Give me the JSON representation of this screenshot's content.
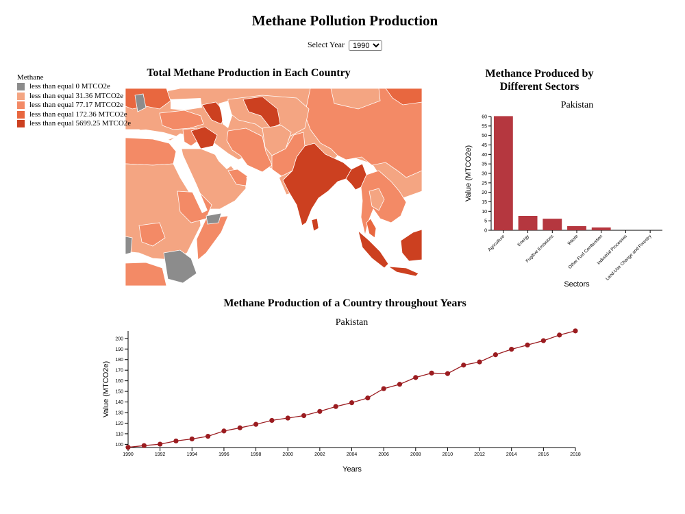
{
  "header": {
    "title": "Methane Pollution Production",
    "year_label": "Select Year",
    "year_selected": "1990",
    "year_options": [
      "1990"
    ]
  },
  "map": {
    "title": "Total Methane Production in Each Country",
    "legend_title": "Methane",
    "legend": [
      {
        "label": "less than equal 0 MTCO2e",
        "color": "#8c8c8c"
      },
      {
        "label": "less than equal 31.36 MTCO2e",
        "color": "#f4a582"
      },
      {
        "label": "less than equal 77.17 MTCO2e",
        "color": "#f38a66"
      },
      {
        "label": "less than equal 172.36 MTCO2e",
        "color": "#e8673f"
      },
      {
        "label": "less than equal 5699.25 MTCO2e",
        "color": "#cc4020"
      }
    ]
  },
  "chart_data": [
    {
      "type": "bar",
      "title": "Methance Produced by Different Sectors",
      "subtitle": "Pakistan",
      "xlabel": "Sectors",
      "ylabel": "Value (MTCO2e)",
      "ylim": [
        0,
        60
      ],
      "yticks": [
        0,
        5,
        10,
        15,
        20,
        25,
        30,
        35,
        40,
        45,
        50,
        55,
        60
      ],
      "color": "#b5373f",
      "categories": [
        "Agriculture",
        "Energy",
        "Fugitive Emissions",
        "Waste",
        "Other Fuel Combustion",
        "Industrial Processes",
        "Land-Use Change and Forestry"
      ],
      "values": [
        60.2,
        7.6,
        6.1,
        2.2,
        1.5,
        0,
        0
      ]
    },
    {
      "type": "line",
      "title": "Methane Production of a Country throughout Years",
      "subtitle": "Pakistan",
      "xlabel": "Years",
      "ylabel": "Value (MTCO2e)",
      "color": "#9b1c20",
      "xlim": [
        1990,
        2018
      ],
      "ylim": [
        97,
        207
      ],
      "xticks": [
        1990,
        1992,
        1994,
        1996,
        1998,
        2000,
        2002,
        2004,
        2006,
        2008,
        2010,
        2012,
        2014,
        2016,
        2018
      ],
      "yticks": [
        100,
        110,
        120,
        130,
        140,
        150,
        160,
        170,
        180,
        190,
        200
      ],
      "x": [
        1990,
        1991,
        1992,
        1993,
        1994,
        1995,
        1996,
        1997,
        1998,
        1999,
        2000,
        2001,
        2002,
        2003,
        2004,
        2005,
        2006,
        2007,
        2008,
        2009,
        2010,
        2011,
        2012,
        2013,
        2014,
        2015,
        2016,
        2017,
        2018
      ],
      "y": [
        97.2,
        98.8,
        100.2,
        103.2,
        105.1,
        107.6,
        112.6,
        115.6,
        118.9,
        122.6,
        124.8,
        127.1,
        131.1,
        135.7,
        139.3,
        143.8,
        152.6,
        156.7,
        163.1,
        167.3,
        166.8,
        174.8,
        177.8,
        184.6,
        189.8,
        193.8,
        197.9,
        203.2,
        207.1
      ]
    }
  ]
}
